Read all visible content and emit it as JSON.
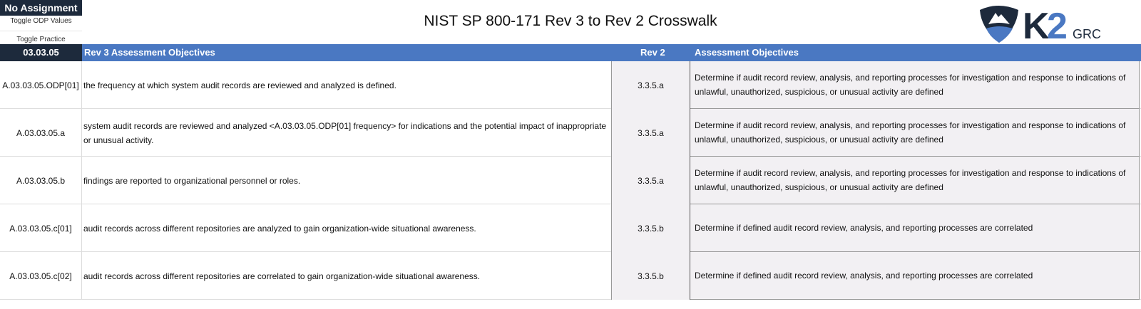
{
  "controls": {
    "assignment": "No Assignment",
    "toggle_odp": "Toggle ODP Values",
    "toggle_practice": "Toggle Practice"
  },
  "title": "NIST SP 800-171 Rev 3 to Rev 2 Crosswalk",
  "logo": {
    "text": "K2",
    "sub": "GRC",
    "colors": {
      "navy": "#1d2a3c",
      "blue": "#4a78c2"
    }
  },
  "header": {
    "id": "03.03.05",
    "rev3": "Rev 3 Assessment Objectives",
    "rev2": "Rev 2",
    "objectives": "Assessment Objectives"
  },
  "rows": [
    {
      "id": "A.03.03.05.ODP[01]",
      "rev3": "the frequency at which system audit records are reviewed and analyzed is defined.",
      "rev2": "3.3.5.a",
      "objective": "Determine if audit record review, analysis, and reporting processes for investigation and response to indications of unlawful, unauthorized, suspicious, or unusual activity are defined"
    },
    {
      "id": "A.03.03.05.a",
      "rev3": "system audit records are reviewed and analyzed <A.03.03.05.ODP[01] frequency> for indications and the potential impact of inappropriate or unusual activity.",
      "rev2": "3.3.5.a",
      "objective": "Determine if audit record review, analysis, and reporting processes for investigation and response to indications of unlawful, unauthorized, suspicious, or unusual activity are defined"
    },
    {
      "id": "A.03.03.05.b",
      "rev3": "findings are reported to organizational personnel or roles.",
      "rev2": "3.3.5.a",
      "objective": "Determine if audit record review, analysis, and reporting processes for investigation and response to indications of unlawful, unauthorized, suspicious, or unusual activity are defined"
    },
    {
      "id": "A.03.03.05.c[01]",
      "rev3": "audit records across different repositories are analyzed to gain organization-wide situational awareness.",
      "rev2": "3.3.5.b",
      "objective": "Determine if defined audit record review, analysis, and reporting processes are correlated"
    },
    {
      "id": "A.03.03.05.c[02]",
      "rev3": "audit records across different repositories are correlated to gain organization-wide situational awareness.",
      "rev2": "3.3.5.b",
      "objective": "Determine if defined audit record review, analysis, and reporting processes are correlated"
    }
  ]
}
